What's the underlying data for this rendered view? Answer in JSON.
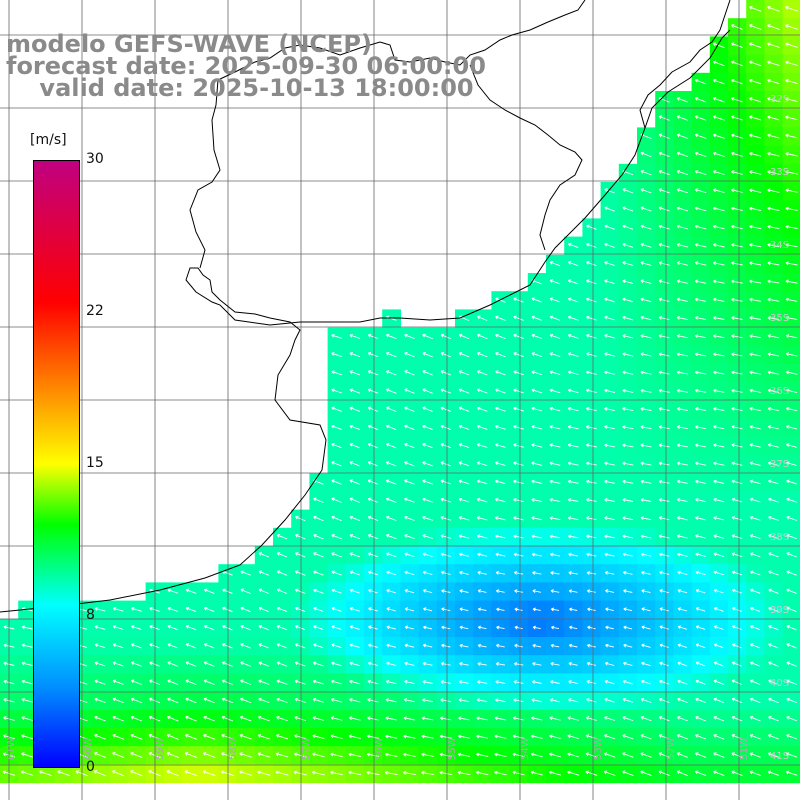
{
  "title": {
    "line1": "modelo GEFS-WAVE (NCEP)",
    "line2": "forecast date: 2025-09-30 06:00:00",
    "line3": "    valid date: 2025-10-13 18:00:00"
  },
  "colorbar": {
    "unit": "[m/s]",
    "min": 0,
    "max": 30,
    "ticks": [
      "30",
      "22",
      "15",
      "8",
      "0"
    ],
    "tick_values": [
      30,
      22,
      15,
      8,
      0
    ],
    "stops": [
      {
        "v": 0,
        "color": "#0000ff"
      },
      {
        "v": 4,
        "color": "#0090ff"
      },
      {
        "v": 8,
        "color": "#00ffff"
      },
      {
        "v": 12,
        "color": "#00ff00"
      },
      {
        "v": 15,
        "color": "#ffff00"
      },
      {
        "v": 19,
        "color": "#ff8000"
      },
      {
        "v": 23,
        "color": "#ff0000"
      },
      {
        "v": 30,
        "color": "#c00080"
      }
    ]
  },
  "axes": {
    "lat_labels": [
      "32S",
      "33S",
      "34S",
      "35S",
      "36S",
      "37S",
      "38S",
      "39S",
      "40S",
      "41S"
    ],
    "lat_values": [
      32,
      33,
      34,
      35,
      36,
      37,
      38,
      39,
      40,
      41
    ],
    "lon_labels": [
      "61W",
      "60W",
      "59W",
      "58W",
      "57W",
      "56W",
      "55W",
      "54W",
      "53W",
      "52W",
      "51W"
    ],
    "lon_values": [
      -61,
      -60,
      -59,
      -58,
      -57,
      -56,
      -55,
      -54,
      -53,
      -52,
      -51
    ]
  },
  "chart_data": {
    "type": "heatmap",
    "variable": "wind speed",
    "unit": "m/s",
    "lat_range": [
      -41.5,
      -30.5
    ],
    "lon_range": [
      -61,
      -50.2
    ],
    "field_summary": "Wind speed mostly 5-9 m/s over the shelf, minimum about 3 m/s near 39S 54W, up to about 12 m/s offshore northeast and southwest; wind arrows from the east-northeast"
  },
  "colors": {
    "land": "#ffffff",
    "coast": "#000000",
    "grid": "#666666",
    "arrow": "#ffffff",
    "title": "#8a8a8a"
  }
}
